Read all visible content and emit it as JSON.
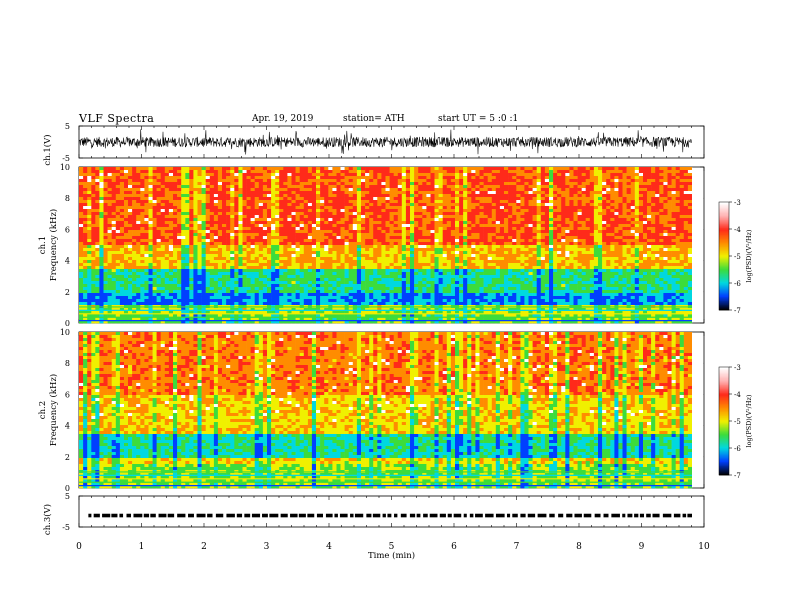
{
  "header": {
    "title": "VLF  Spectra",
    "date": "Apr. 19, 2019",
    "station": "station= ATH",
    "start": "start  UT  =    5  :0   :1"
  },
  "chart_data": [
    {
      "type": "line",
      "name": "ch1-waveform",
      "ylabel": "ch.1(V)",
      "ylim": [
        -5,
        5
      ],
      "yticks": [
        "5",
        "-5"
      ],
      "xlim": [
        0,
        10
      ],
      "data_x_range": [
        0,
        9.8
      ],
      "shape": "dense noisy waveform centered near 0 V, excursions to about ±4 V"
    },
    {
      "type": "heatmap",
      "name": "ch1-spectrogram",
      "ylabel": "Frequency  (kHz)",
      "ylabel_prefix": "ch.1",
      "ylim": [
        0,
        10
      ],
      "yticks": [
        "0",
        "2",
        "4",
        "6",
        "8",
        "10"
      ],
      "xlim": [
        0,
        10
      ],
      "data_x_range": [
        0,
        9.8
      ],
      "bands": [
        {
          "f_from": 0,
          "f_to": 0.6,
          "level": "mixed blue/green/yellow lines"
        },
        {
          "f_from": 0.6,
          "f_to": 1.2,
          "level": "-5 (green/yellow)"
        },
        {
          "f_from": 1.2,
          "f_to": 1.9,
          "level": "-6 (blue/cyan)"
        },
        {
          "f_from": 1.9,
          "f_to": 3.4,
          "level": "-5.5 (cyan/green)"
        },
        {
          "f_from": 3.4,
          "f_to": 5.0,
          "level": "-4.5 (yellow/orange)"
        },
        {
          "f_from": 5.0,
          "f_to": 10,
          "level": "-4 (red)"
        }
      ]
    },
    {
      "type": "heatmap",
      "name": "ch2-spectrogram",
      "ylabel": "Frequency  (kHz)",
      "ylabel_prefix": "ch.2",
      "ylim": [
        0,
        10
      ],
      "yticks": [
        "0",
        "2",
        "4",
        "6",
        "8",
        "10"
      ],
      "xlim": [
        0,
        10
      ],
      "data_x_range": [
        0,
        9.8
      ],
      "bands": [
        {
          "f_from": 0,
          "f_to": 1.6,
          "level": "mixed green/yellow/blue lines"
        },
        {
          "f_from": 1.6,
          "f_to": 2.0,
          "level": "-4.5 (yellow)"
        },
        {
          "f_from": 2.0,
          "f_to": 3.4,
          "level": "-5.5 (cyan/green)"
        },
        {
          "f_from": 3.4,
          "f_to": 6.0,
          "level": "-4.7 (yellow/orange)"
        },
        {
          "f_from": 6.0,
          "f_to": 10,
          "level": "-4.2 (red/orange)"
        }
      ]
    },
    {
      "type": "line",
      "name": "ch3-waveform",
      "ylabel": "ch.3(V)",
      "ylim": [
        -5,
        5
      ],
      "yticks": [
        "5",
        "-5"
      ],
      "xlim": [
        0,
        10
      ],
      "data_x_range": [
        0,
        9.8
      ],
      "shape": "near-constant level around -1.3 V with small dashes"
    }
  ],
  "xaxis": {
    "label": "Time  (min)",
    "ticks": [
      "0",
      "1",
      "2",
      "3",
      "4",
      "5",
      "6",
      "7",
      "8",
      "9",
      "10"
    ]
  },
  "colorbars": [
    {
      "name": "ch1-colorbar",
      "label": "log(PSD)(V²/Hz)",
      "ticks": [
        "-3",
        "-4",
        "-5",
        "-6",
        "-7"
      ],
      "range": [
        -7,
        -3
      ]
    },
    {
      "name": "ch2-colorbar",
      "label": "log(PSD)(V²/Hz)",
      "ticks": [
        "-3",
        "-4",
        "-5",
        "-6",
        "-7"
      ],
      "range": [
        -7,
        -3
      ]
    }
  ],
  "colors": {
    "red": "#ff2a1a",
    "orange": "#ff8c00",
    "yellow": "#f0f000",
    "green": "#3cdc3c",
    "cyan": "#00d8e0",
    "blue": "#0040ff",
    "white": "#ffffff"
  }
}
